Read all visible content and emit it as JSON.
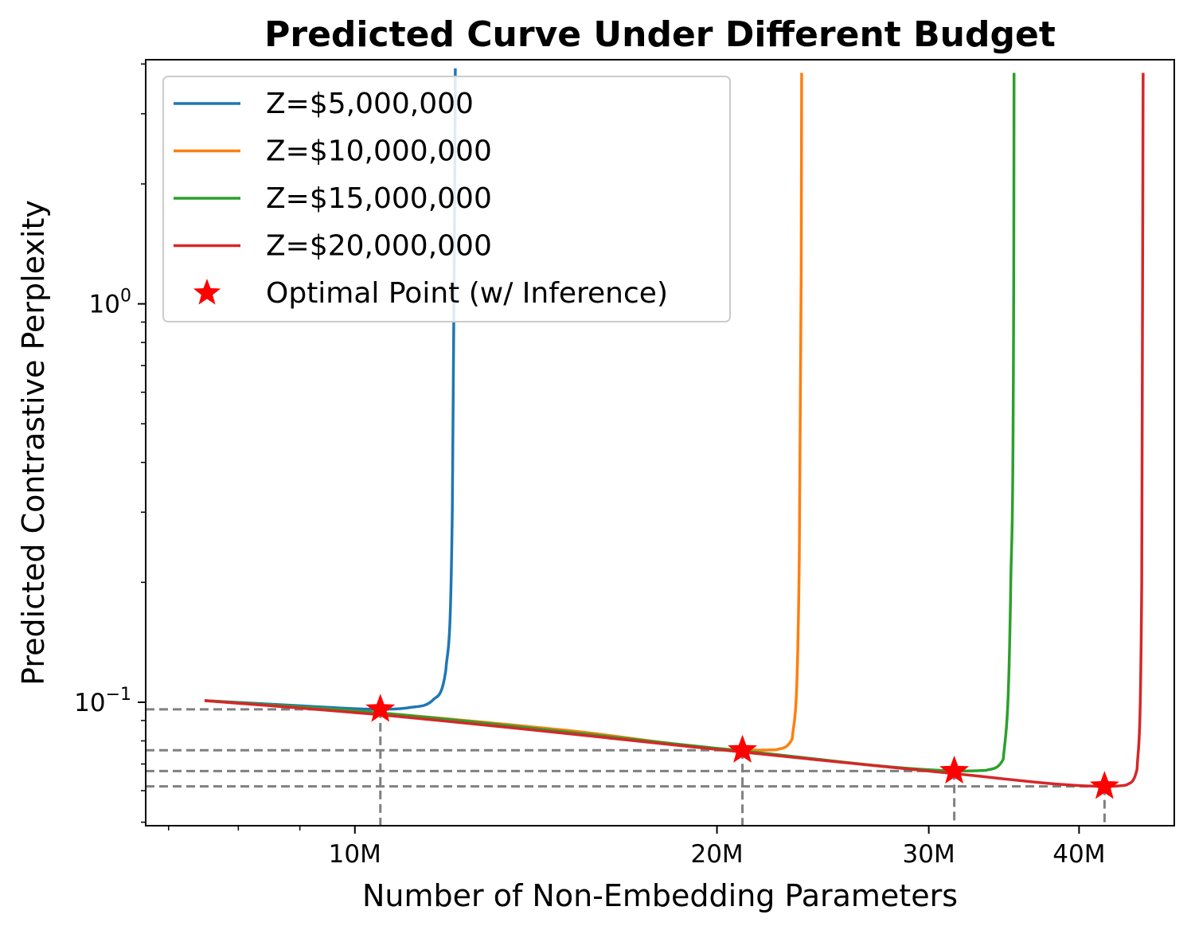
{
  "chart_data": {
    "type": "line",
    "title": "Predicted Curve Under Different Budget",
    "xlabel": "Number of Non-Embedding Parameters",
    "ylabel": "Predicted Contrastive Perplexity",
    "x_scale": "log",
    "y_scale": "log",
    "xlim": [
      6700000,
      48000000
    ],
    "ylim": [
      0.049,
      4.1
    ],
    "x_ticks": [
      {
        "value": 10000000,
        "label": "10M"
      },
      {
        "value": 20000000,
        "label": "20M"
      },
      {
        "value": 30000000,
        "label": "30M"
      },
      {
        "value": 40000000,
        "label": "40M"
      }
    ],
    "y_ticks": [
      {
        "value": 1.0,
        "base": "10",
        "exp": "0"
      },
      {
        "value": 0.1,
        "base": "10",
        "exp": "−1"
      }
    ],
    "grid": false,
    "legend_position": "upper left",
    "series": [
      {
        "name": "Z=$5,000,000",
        "color": "#1f77b4",
        "x": [
          7500000,
          9000000,
          10500000,
          11100000,
          11600000,
          11900000,
          12050000,
          12100000,
          12120000
        ],
        "y": [
          0.101,
          0.098,
          0.096,
          0.097,
          0.101,
          0.12,
          0.3,
          1.5,
          3.9
        ]
      },
      {
        "name": "Z=$10,000,000",
        "color": "#ff7f0e",
        "x": [
          7500000,
          10500000,
          15000000,
          21000000,
          22400000,
          23100000,
          23400000,
          23500000,
          23520000
        ],
        "y": [
          0.101,
          0.094,
          0.085,
          0.0758,
          0.076,
          0.081,
          0.2,
          1.2,
          3.8
        ]
      },
      {
        "name": "Z=$15,000,000",
        "color": "#2ca02c",
        "x": [
          7500000,
          10500000,
          21000000,
          31500000,
          33500000,
          34600000,
          35100000,
          35300000,
          35320000
        ],
        "y": [
          0.101,
          0.094,
          0.0755,
          0.0672,
          0.0675,
          0.072,
          0.2,
          1.2,
          3.8
        ]
      },
      {
        "name": "Z=$20,000,000",
        "color": "#d62728",
        "x": [
          7500000,
          10500000,
          21000000,
          31500000,
          42000000,
          43800000,
          44700000,
          45100000,
          45220000
        ],
        "y": [
          0.101,
          0.093,
          0.075,
          0.0662,
          0.0615,
          0.062,
          0.068,
          0.2,
          3.8
        ]
      },
      {
        "name": "Optimal Point (w/ Inference)",
        "color": "#ff0000",
        "marker": "star",
        "x": [
          10500000,
          21000000,
          31500000,
          42000000
        ],
        "y": [
          0.096,
          0.0758,
          0.0672,
          0.0615
        ]
      }
    ],
    "reference_lines": "dashed gray lines from each optimal point to the x and y axes"
  }
}
